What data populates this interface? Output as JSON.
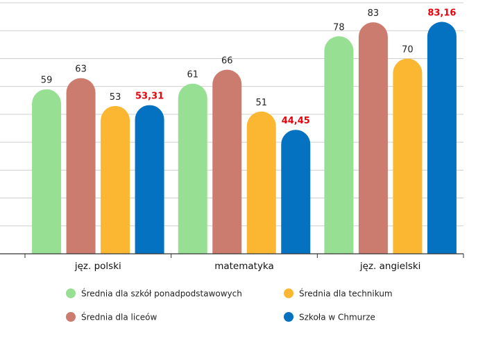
{
  "chart_data": {
    "type": "bar",
    "title": "",
    "xlabel": "",
    "ylabel": "",
    "ylim": [
      0,
      90
    ],
    "grid": true,
    "legend_position": "bottom",
    "categories": [
      "jęz. polski",
      "matematyka",
      "jęz. angielski"
    ],
    "series": [
      {
        "name": "Średnia dla szkół ponadpodstawowych",
        "color": "#97df93",
        "values": [
          59,
          61,
          78
        ],
        "labels": [
          "59",
          "61",
          "78"
        ],
        "highlight": false
      },
      {
        "name": "Średnia dla liceów",
        "color": "#cb7c6e",
        "values": [
          63,
          66,
          83
        ],
        "labels": [
          "63",
          "66",
          "83"
        ],
        "highlight": false
      },
      {
        "name": "Średnia dla technikum",
        "color": "#fbb731",
        "values": [
          53,
          51,
          70
        ],
        "labels": [
          "53",
          "51",
          "70"
        ],
        "highlight": false
      },
      {
        "name": "Szkoła w Chmurze",
        "color": "#0571c1",
        "values": [
          53.31,
          44.45,
          83.16
        ],
        "labels": [
          "53,31",
          "44,45",
          "83,16"
        ],
        "highlight": true
      }
    ]
  }
}
